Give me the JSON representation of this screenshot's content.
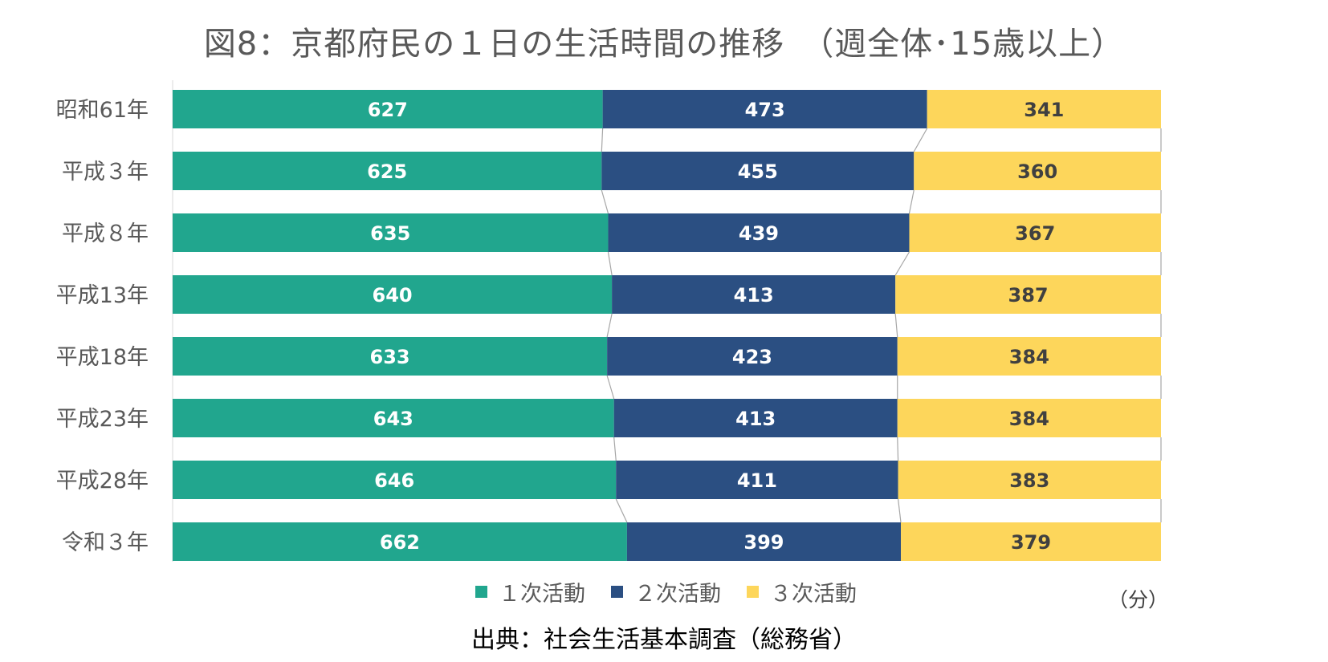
{
  "colors": {
    "primary": "#21a68e",
    "secondary": "#2b4f82",
    "tertiary": "#fdd65b",
    "label_light": "#ffffff",
    "label_dark": "#404040"
  },
  "chart_data": {
    "type": "bar",
    "orientation": "horizontal",
    "stacked": true,
    "title": "図8：京都府民の１日の生活時間の推移　（週全体･15歳以上）",
    "unit": "（分）",
    "source": "出典：社会生活基本調査（総務省）",
    "categories": [
      "昭和61年",
      "平成３年",
      "平成８年",
      "平成13年",
      "平成18年",
      "平成23年",
      "平成28年",
      "令和３年"
    ],
    "series": [
      {
        "name": "１次活動",
        "values": [
          627,
          625,
          635,
          640,
          633,
          643,
          646,
          662
        ]
      },
      {
        "name": "２次活動",
        "values": [
          473,
          455,
          439,
          413,
          423,
          413,
          411,
          399
        ]
      },
      {
        "name": "３次活動",
        "values": [
          341,
          360,
          367,
          387,
          384,
          384,
          383,
          379
        ]
      }
    ],
    "series_lines": true,
    "legend_position": "bottom",
    "grid": false
  }
}
